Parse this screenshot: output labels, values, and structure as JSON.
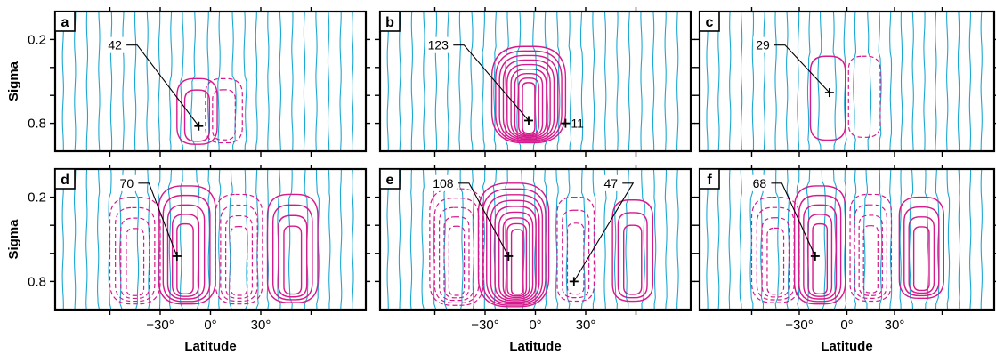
{
  "chart_data": [
    {
      "type": "contour",
      "panel_label": "a",
      "ylabel": "Sigma",
      "xlabel": "",
      "xlim": [
        -90,
        90
      ],
      "ylim": [
        1.0,
        0.0
      ],
      "xticks": [
        -30,
        0,
        30
      ],
      "xtick_labels": [],
      "yticks": [
        0.2,
        0.8
      ],
      "ytick_labels": [
        "0.2",
        "0.8"
      ],
      "cells": [
        {
          "center": [
            -8,
            0.76
          ],
          "hw": 12,
          "top": 0.48,
          "bottom": 0.95,
          "sign": "positive",
          "levels": 2,
          "peak_shift": 0
        },
        {
          "center": [
            8,
            0.75
          ],
          "hw": 11,
          "top": 0.48,
          "bottom": 0.94,
          "sign": "negative",
          "levels": 2,
          "peak_shift": 0
        }
      ],
      "maxima": [
        {
          "value": "42",
          "x": -7,
          "sigma": 0.82,
          "label_x": -57,
          "label_sigma": 0.24
        }
      ]
    },
    {
      "type": "contour",
      "panel_label": "b",
      "ylabel": "",
      "xlabel": "",
      "xlim": [
        -90,
        90
      ],
      "ylim": [
        1.0,
        0.0
      ],
      "xticks": [
        -30,
        0,
        30
      ],
      "xtick_labels": [],
      "yticks": [
        0.2,
        0.8
      ],
      "ytick_labels": [],
      "cells": [
        {
          "center": [
            -4,
            0.68
          ],
          "hw": 22,
          "top": 0.25,
          "bottom": 0.94,
          "sign": "positive",
          "levels": 9,
          "peak_shift": 0
        }
      ],
      "maxima": [
        {
          "value": "123",
          "x": -4,
          "sigma": 0.78,
          "label_x": -58,
          "label_sigma": 0.24
        },
        {
          "value": "11",
          "x": 18,
          "sigma": 0.8,
          "label_x": 21,
          "label_sigma": 0.8
        }
      ]
    },
    {
      "type": "contour",
      "panel_label": "c",
      "ylabel": "",
      "xlabel": "",
      "xlim": [
        -90,
        90
      ],
      "ylim": [
        1.0,
        0.0
      ],
      "xticks": [
        -30,
        0,
        30
      ],
      "xtick_labels": [],
      "yticks": [
        0.2,
        0.8
      ],
      "ytick_labels": [],
      "cells": [
        {
          "center": [
            -12,
            0.62
          ],
          "hw": 11,
          "top": 0.32,
          "bottom": 0.92,
          "sign": "positive",
          "levels": 1,
          "peak_shift": 0
        },
        {
          "center": [
            11,
            0.6
          ],
          "hw": 10,
          "top": 0.32,
          "bottom": 0.9,
          "sign": "negative",
          "levels": 1,
          "peak_shift": 0
        }
      ],
      "maxima": [
        {
          "value": "29",
          "x": -11,
          "sigma": 0.58,
          "label_x": -53,
          "label_sigma": 0.24
        }
      ]
    },
    {
      "type": "contour",
      "panel_label": "d",
      "ylabel": "Sigma",
      "xlabel": "Latitude",
      "xlim": [
        -90,
        90
      ],
      "ylim": [
        1.0,
        0.0
      ],
      "xticks": [
        -30,
        0,
        30
      ],
      "xtick_labels": [
        "−30°",
        "0°",
        "30°"
      ],
      "yticks": [
        0.2,
        0.8
      ],
      "ytick_labels": [
        "0.2",
        "0.8"
      ],
      "cells": [
        {
          "center": [
            -45,
            0.56
          ],
          "hw": 15,
          "top": 0.2,
          "bottom": 0.96,
          "sign": "negative",
          "levels": 4,
          "peak_shift": 0
        },
        {
          "center": [
            -14,
            0.52
          ],
          "hw": 17,
          "top": 0.12,
          "bottom": 0.96,
          "sign": "positive",
          "levels": 5,
          "peak_shift": -3
        },
        {
          "center": [
            17,
            0.56
          ],
          "hw": 14,
          "top": 0.18,
          "bottom": 0.96,
          "sign": "negative",
          "levels": 4,
          "peak_shift": 0
        },
        {
          "center": [
            49,
            0.55
          ],
          "hw": 15,
          "top": 0.18,
          "bottom": 0.95,
          "sign": "positive",
          "levels": 4,
          "peak_shift": 0
        }
      ],
      "maxima": [
        {
          "value": "70",
          "x": -20,
          "sigma": 0.62,
          "label_x": -50,
          "label_sigma": 0.1
        }
      ]
    },
    {
      "type": "contour",
      "panel_label": "e",
      "ylabel": "",
      "xlabel": "Latitude",
      "xlim": [
        -90,
        90
      ],
      "ylim": [
        1.0,
        0.0
      ],
      "xticks": [
        -30,
        0,
        30
      ],
      "xtick_labels": [
        "−30°",
        "0°",
        "30°"
      ],
      "yticks": [
        0.2,
        0.8
      ],
      "ytick_labels": [],
      "cells": [
        {
          "center": [
            -47,
            0.56
          ],
          "hw": 16,
          "top": 0.14,
          "bottom": 0.97,
          "sign": "negative",
          "levels": 5,
          "peak_shift": 0
        },
        {
          "center": [
            -13,
            0.55
          ],
          "hw": 21,
          "top": 0.1,
          "bottom": 0.98,
          "sign": "positive",
          "levels": 9,
          "peak_shift": 5
        },
        {
          "center": [
            24,
            0.56
          ],
          "hw": 11,
          "top": 0.2,
          "bottom": 0.94,
          "sign": "negative",
          "levels": 3,
          "peak_shift": 0
        },
        {
          "center": [
            58,
            0.56
          ],
          "hw": 12,
          "top": 0.22,
          "bottom": 0.94,
          "sign": "positive",
          "levels": 3,
          "peak_shift": 0
        }
      ],
      "maxima": [
        {
          "value": "108",
          "x": -16,
          "sigma": 0.62,
          "label_x": -55,
          "label_sigma": 0.1
        },
        {
          "value": "47",
          "x": 23,
          "sigma": 0.8,
          "label_x": 45,
          "label_sigma": 0.1
        }
      ]
    },
    {
      "type": "contour",
      "panel_label": "f",
      "ylabel": "",
      "xlabel": "Latitude",
      "xlim": [
        -90,
        90
      ],
      "ylim": [
        1.0,
        0.0
      ],
      "xticks": [
        -30,
        0,
        30
      ],
      "xtick_labels": [
        "−30°",
        "0°",
        "30°"
      ],
      "yticks": [
        0.2,
        0.8
      ],
      "ytick_labels": [],
      "cells": [
        {
          "center": [
            -45,
            0.56
          ],
          "hw": 15,
          "top": 0.2,
          "bottom": 0.95,
          "sign": "negative",
          "levels": 4,
          "peak_shift": 0
        },
        {
          "center": [
            -17,
            0.53
          ],
          "hw": 16,
          "top": 0.12,
          "bottom": 0.96,
          "sign": "positive",
          "levels": 5,
          "peak_shift": 0
        },
        {
          "center": [
            15,
            0.56
          ],
          "hw": 13,
          "top": 0.18,
          "bottom": 0.94,
          "sign": "negative",
          "levels": 4,
          "peak_shift": 0
        },
        {
          "center": [
            47,
            0.56
          ],
          "hw": 14,
          "top": 0.2,
          "bottom": 0.92,
          "sign": "positive",
          "levels": 4,
          "peak_shift": 0
        }
      ],
      "maxima": [
        {
          "value": "68",
          "x": -20,
          "sigma": 0.62,
          "label_x": -55,
          "label_sigma": 0.1
        }
      ]
    }
  ]
}
